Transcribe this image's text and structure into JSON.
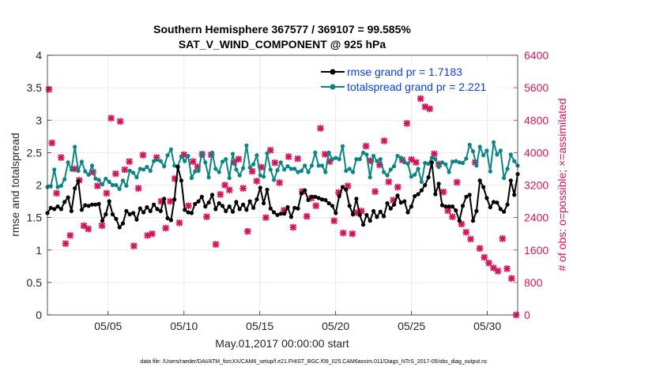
{
  "chart_data": {
    "type": "line",
    "title": "Southern Hemisphere 367577 / 369107 = 99.585%",
    "subtitle": "SAT_V_WIND_COMPONENT @ 925 hPa",
    "xlabel": "May.01,2017 00:00:00 start",
    "ylabel": "rmse and totalspread",
    "ylabel_right": "# of obs: o=possible; ×=assimilated",
    "footnote": "data file: /Users/raeder/DAI/ATM_forcXX/CAM6_setup/f.e21.FHIST_BGC.f09_025.CAM6assim.011/Diags_NTrS_2017-05/obs_diag_output.nc",
    "xlim": [
      1.0,
      32.0
    ],
    "ylim": [
      0,
      4
    ],
    "ylim_right": [
      0,
      6400
    ],
    "x_ticks": [
      {
        "value": 5,
        "label": "05/05"
      },
      {
        "value": 10,
        "label": "05/10"
      },
      {
        "value": 15,
        "label": "05/15"
      },
      {
        "value": 20,
        "label": "05/20"
      },
      {
        "value": 25,
        "label": "05/25"
      },
      {
        "value": 30,
        "label": "05/30"
      }
    ],
    "y_ticks": [
      "0",
      "0.5",
      "1",
      "1.5",
      "2",
      "2.5",
      "3",
      "3.5",
      "4"
    ],
    "y_ticks_right": [
      "0",
      "800",
      "1600",
      "2400",
      "3200",
      "4000",
      "4800",
      "5600",
      "6400"
    ],
    "legend_location": "top-right",
    "series": [
      {
        "name": "rmse grand pr = 1.7183",
        "color": "#000000",
        "marker": "circle",
        "axis": "left",
        "values": [
          1.57,
          1.65,
          1.63,
          1.67,
          1.63,
          1.74,
          1.81,
          1.6,
          1.95,
          2.06,
          1.62,
          1.69,
          1.68,
          1.7,
          1.7,
          1.71,
          1.45,
          1.55,
          1.75,
          1.55,
          1.48,
          1.35,
          1.41,
          1.6,
          1.55,
          1.57,
          1.47,
          1.64,
          1.58,
          1.66,
          1.6,
          1.7,
          1.63,
          1.6,
          1.79,
          1.49,
          1.46,
          1.78,
          2.28,
          2.07,
          1.62,
          1.58,
          1.57,
          1.71,
          1.75,
          1.82,
          1.67,
          1.73,
          1.85,
          1.63,
          1.72,
          1.68,
          1.6,
          1.67,
          1.59,
          1.74,
          1.63,
          1.7,
          1.62,
          1.75,
          1.65,
          1.78,
          1.96,
          1.72,
          1.93,
          1.64,
          1.58,
          1.54,
          1.56,
          1.56,
          1.66,
          1.51,
          1.65,
          1.64,
          1.87,
          1.92,
          1.77,
          1.82,
          1.82,
          1.8,
          1.78,
          1.77,
          1.72,
          1.68,
          1.57,
          1.83,
          1.97,
          1.93,
          1.68,
          1.55,
          1.79,
          1.54,
          1.39,
          1.54,
          1.45,
          1.6,
          1.51,
          1.59,
          1.52,
          1.72,
          1.64,
          1.7,
          1.84,
          1.73,
          1.75,
          1.58,
          1.67,
          1.83,
          1.86,
          1.92,
          2.0,
          2.12,
          2.35,
          1.86,
          2.02,
          1.69,
          1.67,
          1.67,
          1.67,
          1.61,
          1.45,
          1.68,
          1.82,
          1.85,
          1.45,
          1.6,
          2.07,
          1.97,
          1.8,
          1.66,
          1.74,
          1.73,
          1.63,
          1.59,
          1.7,
          2.07,
          1.85,
          2.17
        ]
      },
      {
        "name": "totalspread grand pr = 2.221",
        "color": "#0b8484",
        "marker": "circle",
        "axis": "left",
        "values": [
          1.97,
          1.98,
          2.24,
          1.97,
          1.99,
          2.09,
          2.35,
          2.24,
          2.59,
          2.22,
          2.36,
          2.21,
          2.16,
          2.3,
          2.1,
          2.08,
          2.01,
          2.1,
          2.05,
          2.0,
          2.0,
          1.94,
          2.07,
          1.99,
          2.22,
          2.19,
          2.12,
          2.25,
          2.24,
          2.28,
          2.22,
          2.37,
          2.39,
          2.37,
          2.29,
          2.46,
          2.55,
          2.3,
          2.29,
          2.44,
          2.37,
          2.45,
          2.11,
          2.21,
          2.22,
          2.49,
          2.35,
          2.12,
          2.5,
          2.25,
          2.2,
          2.36,
          2.4,
          2.11,
          2.48,
          2.24,
          2.15,
          2.26,
          2.61,
          2.27,
          2.32,
          2.46,
          2.15,
          2.13,
          2.49,
          2.24,
          2.08,
          2.23,
          2.35,
          2.24,
          2.29,
          2.25,
          2.25,
          2.2,
          2.22,
          2.3,
          2.2,
          2.3,
          2.5,
          2.3,
          2.3,
          2.2,
          2.5,
          2.4,
          2.42,
          2.4,
          2.6,
          2.22,
          2.25,
          2.2,
          2.4,
          2.4,
          2.5,
          2.47,
          2.12,
          2.45,
          2.37,
          2.4,
          2.2,
          2.15,
          2.24,
          2.29,
          2.45,
          2.42,
          2.35,
          2.33,
          2.13,
          2.16,
          2.25,
          2.05,
          2.34,
          2.33,
          2.42,
          2.4,
          2.28,
          2.35,
          2.32,
          2.2,
          2.36,
          2.37,
          2.35,
          2.34,
          2.41,
          2.62,
          2.52,
          2.3,
          2.59,
          2.46,
          2.53,
          2.21,
          2.66,
          2.47,
          2.53,
          2.11,
          2.25,
          2.47,
          2.37,
          2.3
        ]
      }
    ],
    "obs_counts": {
      "name": "# of obs",
      "color": "#d4145a",
      "marker": "x",
      "axis": "right",
      "x": [
        1.1,
        1.3,
        1.6,
        1.9,
        2.2,
        2.5,
        2.8,
        3.1,
        3.4,
        3.7,
        4.0,
        4.3,
        4.6,
        4.9,
        5.2,
        5.5,
        5.8,
        6.1,
        6.4,
        6.7,
        7.0,
        7.3,
        7.6,
        7.9,
        8.2,
        8.5,
        8.8,
        9.1,
        9.4,
        9.7,
        10.0,
        10.3,
        10.6,
        10.9,
        11.2,
        11.5,
        11.8,
        12.1,
        12.4,
        12.7,
        13.0,
        13.3,
        13.6,
        13.9,
        14.2,
        14.5,
        14.8,
        15.1,
        15.4,
        15.7,
        16.0,
        16.3,
        16.6,
        16.9,
        17.2,
        17.5,
        17.8,
        18.1,
        18.4,
        18.7,
        19.0,
        19.3,
        19.6,
        19.9,
        20.2,
        20.5,
        20.8,
        21.1,
        21.4,
        21.7,
        22.0,
        22.3,
        22.6,
        22.9,
        23.2,
        23.5,
        23.8,
        24.1,
        24.4,
        24.7,
        25.0,
        25.3,
        25.6,
        25.9,
        26.2,
        26.5,
        26.8,
        27.1,
        27.4,
        27.7,
        28.0,
        28.3,
        28.6,
        28.9,
        29.2,
        29.5,
        29.8,
        30.1,
        30.4,
        30.7,
        31.0,
        31.3,
        31.6,
        31.9
      ],
      "values": [
        5560,
        4240,
        3000,
        3880,
        1760,
        1960,
        3600,
        3320,
        2200,
        2120,
        3520,
        3180,
        2200,
        3000,
        4850,
        3480,
        4770,
        3580,
        3780,
        1700,
        3120,
        3940,
        1960,
        2000,
        3880,
        2800,
        2140,
        2800,
        3360,
        2270,
        3950,
        2690,
        3780,
        3650,
        3960,
        2420,
        3950,
        1740,
        2970,
        3200,
        3080,
        3760,
        3840,
        3120,
        2060,
        3540,
        3300,
        3640,
        2400,
        4060,
        3750,
        3260,
        2580,
        3900,
        2160,
        3850,
        3040,
        2430,
        2880,
        2690,
        4600,
        3960,
        3780,
        2320,
        3020,
        2020,
        3180,
        2000,
        2520,
        2560,
        4160,
        3800,
        3040,
        3700,
        4290,
        3280,
        2830,
        3150,
        3820,
        4720,
        3830,
        3760,
        5330,
        5130,
        5080,
        3970,
        3720,
        3030,
        2570,
        2420,
        3270,
        2240,
        2040,
        1870,
        3760,
        1640,
        1420,
        1280,
        1160,
        1080,
        1880,
        1140,
        900,
        0
      ]
    }
  }
}
